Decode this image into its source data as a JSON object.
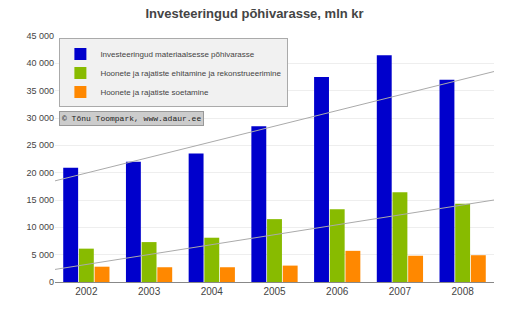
{
  "chart_data": {
    "type": "bar",
    "title": "Investeeringud põhivarasse, mln kr",
    "categories": [
      2002,
      2003,
      2004,
      2005,
      2006,
      2007,
      2008
    ],
    "series": [
      {
        "name": "Investeeringud materiaalsesse põhivarasse",
        "color": "#0000CC",
        "values": [
          20900,
          22000,
          23500,
          28500,
          37500,
          41500,
          37000
        ]
      },
      {
        "name": "Hoonete ja rajatiste ehitamine ja rekonstrueerimine",
        "color": "#88BB00",
        "values": [
          6100,
          7300,
          8100,
          11500,
          13300,
          16400,
          14300
        ]
      },
      {
        "name": "Hoonete ja rajatiste soetamine",
        "color": "#FF8800",
        "values": [
          2800,
          2700,
          2700,
          3000,
          5700,
          4800,
          4900
        ]
      }
    ],
    "trend_lines": [
      {
        "type": "line",
        "color": "#AAAAAA",
        "start": 2300,
        "end": 15000
      },
      {
        "type": "line",
        "color": "#AAAAAA",
        "start": 18500,
        "end": 38500
      }
    ],
    "annotations": [
      "© Tõnu Toompark, www.adaur.ee"
    ],
    "ylim": [
      0,
      45000
    ],
    "yticks": [
      0,
      {
        "value": 5000,
        "label": "5 000"
      },
      {
        "value": 10000,
        "label": "10 000"
      },
      {
        "value": 15000,
        "label": "15 000"
      },
      {
        "value": 20000,
        "label": "20 000"
      },
      {
        "value": 25000,
        "label": "25 000"
      },
      {
        "value": 30000,
        "label": "30 000"
      },
      {
        "value": 35000,
        "label": "35 000"
      },
      {
        "value": 40000,
        "label": "40 000"
      },
      {
        "value": 45000,
        "label": "45 000"
      }
    ],
    "grid": true,
    "legend": "upper left"
  }
}
